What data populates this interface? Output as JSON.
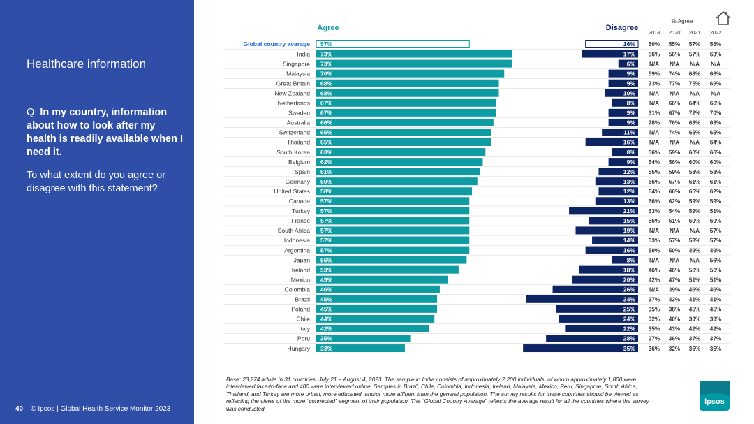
{
  "sidebar": {
    "title": "Healthcare information",
    "question_prefix": "Q: ",
    "question_bold": "In my country, information about how to look after my health is readily available when I need it.",
    "subquestion": "To what extent do you agree or disagree with this statement?",
    "footer_page": "40 –",
    "footer_text": " © Ipsos | Global Health Service Monitor 2023"
  },
  "logo_text": "Ipsos",
  "base_note": "Base: 23,274 adults in 31 countries, July 21 – August 4, 2023. The sample in India consists of approximately 2,200 individuals, of whom approximately 1,800 were interviewed face-to-face and 400 were interviewed online. Samples in Brazil, Chile, Colombia, Indonesia, Ireland, Malaysia, Mexico, Peru, Singapore, South Africa, Thailand, and Turkey are more urban, more educated, and/or more affluent than the general population. The survey results for these countries should be viewed as reflecting the views of the more “connected” segment of their population. The “Global Country Average” reflects the average result for all the countries where the survey was conducted.",
  "colors": {
    "sidebar": "#2f4ea8",
    "agree": "#0f9ba2",
    "disagree": "#0c2461",
    "highlight": "#1a62d6",
    "text": "#333333"
  },
  "chart_data": {
    "type": "bar",
    "title": "",
    "agree_label": "Agree",
    "disagree_label": "Disagree",
    "trend_header": "% Agree",
    "years": [
      "2018",
      "2020",
      "2021",
      "2022"
    ],
    "categories": [
      "Global country average",
      "India",
      "Singapore",
      "Malaysia",
      "Great Britain",
      "New Zealand",
      "Netherlands",
      "Sweden",
      "Australia",
      "Switzerland",
      "Thailand",
      "South Korea",
      "Belgium",
      "Spain",
      "Germany",
      "United States",
      "Canada",
      "Turkey",
      "France",
      "South Africa",
      "Indonesia",
      "Argentina",
      "Japan",
      "Ireland",
      "Mexico",
      "Colombia",
      "Brazil",
      "Poland",
      "Chile",
      "Italy",
      "Peru",
      "Hungary"
    ],
    "agree": [
      57,
      73,
      73,
      70,
      68,
      68,
      67,
      67,
      66,
      65,
      65,
      63,
      62,
      61,
      60,
      58,
      57,
      57,
      57,
      57,
      57,
      57,
      56,
      53,
      49,
      46,
      45,
      45,
      44,
      42,
      35,
      33
    ],
    "disagree": [
      16,
      17,
      6,
      9,
      9,
      10,
      8,
      9,
      9,
      11,
      16,
      8,
      9,
      12,
      13,
      12,
      13,
      21,
      15,
      19,
      14,
      16,
      8,
      18,
      20,
      26,
      34,
      25,
      24,
      22,
      28,
      35
    ],
    "trend": [
      [
        "50%",
        "55%",
        "57%",
        "56%"
      ],
      [
        "56%",
        "56%",
        "57%",
        "63%"
      ],
      [
        "N/A",
        "N/A",
        "N/A",
        "N/A"
      ],
      [
        "59%",
        "74%",
        "68%",
        "66%"
      ],
      [
        "73%",
        "77%",
        "75%",
        "69%"
      ],
      [
        "N/A",
        "N/A",
        "N/A",
        "N/A"
      ],
      [
        "N/A",
        "66%",
        "64%",
        "66%"
      ],
      [
        "31%",
        "67%",
        "72%",
        "70%"
      ],
      [
        "78%",
        "76%",
        "68%",
        "68%"
      ],
      [
        "N/A",
        "74%",
        "65%",
        "65%"
      ],
      [
        "N/A",
        "N/A",
        "N/A",
        "64%"
      ],
      [
        "56%",
        "59%",
        "60%",
        "66%"
      ],
      [
        "54%",
        "56%",
        "60%",
        "60%"
      ],
      [
        "55%",
        "59%",
        "58%",
        "58%"
      ],
      [
        "66%",
        "67%",
        "61%",
        "61%"
      ],
      [
        "54%",
        "66%",
        "65%",
        "62%"
      ],
      [
        "66%",
        "62%",
        "59%",
        "59%"
      ],
      [
        "63%",
        "54%",
        "59%",
        "51%"
      ],
      [
        "56%",
        "61%",
        "60%",
        "60%"
      ],
      [
        "N/A",
        "N/A",
        "N/A",
        "57%"
      ],
      [
        "53%",
        "57%",
        "53%",
        "57%"
      ],
      [
        "50%",
        "50%",
        "49%",
        "49%"
      ],
      [
        "N/A",
        "N/A",
        "N/A",
        "56%"
      ],
      [
        "46%",
        "46%",
        "56%",
        "56%"
      ],
      [
        "42%",
        "47%",
        "51%",
        "51%"
      ],
      [
        "N/A",
        "39%",
        "46%",
        "46%"
      ],
      [
        "37%",
        "43%",
        "41%",
        "41%"
      ],
      [
        "35%",
        "38%",
        "45%",
        "45%"
      ],
      [
        "32%",
        "40%",
        "39%",
        "39%"
      ],
      [
        "35%",
        "43%",
        "42%",
        "42%"
      ],
      [
        "27%",
        "36%",
        "37%",
        "37%"
      ],
      [
        "36%",
        "32%",
        "35%",
        "35%"
      ]
    ],
    "xlim": [
      0,
      100
    ],
    "legend": "top"
  }
}
